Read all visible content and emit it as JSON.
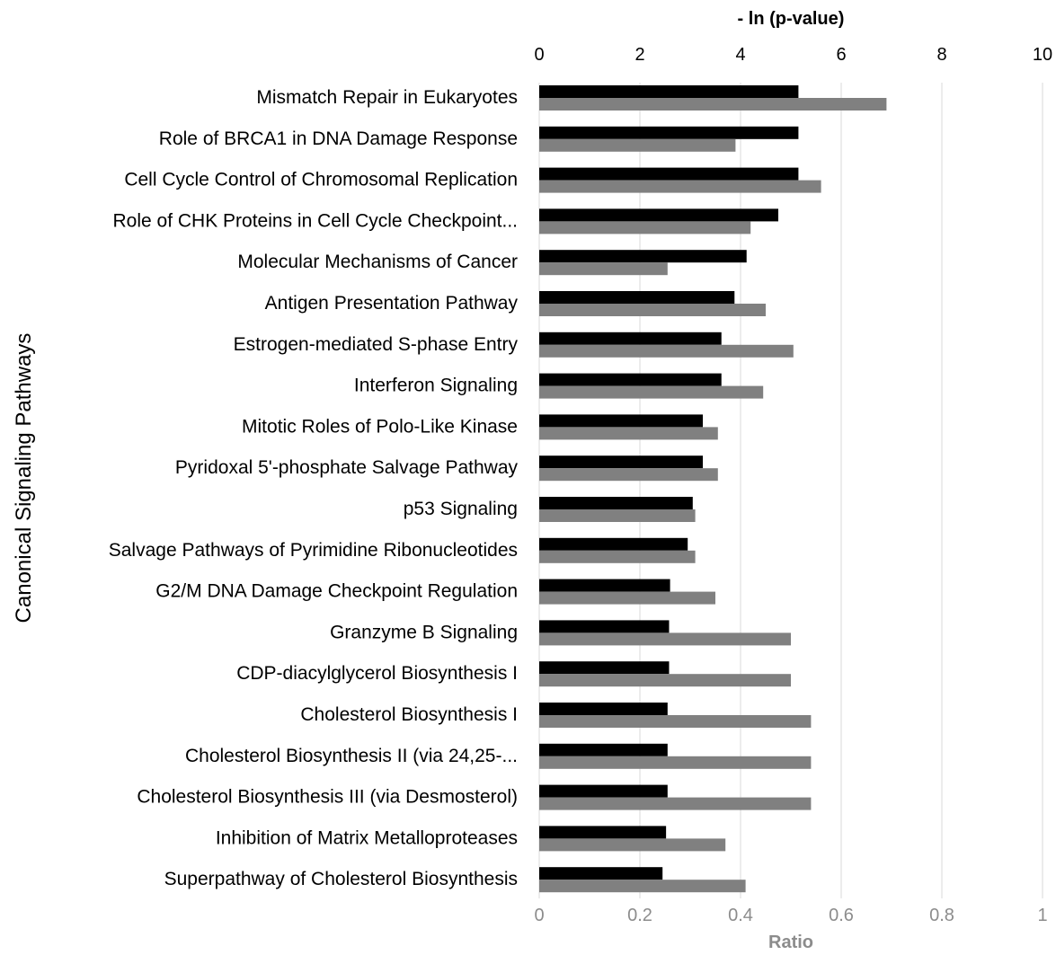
{
  "chart_data": {
    "type": "bar",
    "orientation": "horizontal",
    "ylabel": "Canonical Signaling Pathways",
    "top_axis": {
      "label": "- ln (p-value)",
      "range": [
        0,
        10
      ],
      "ticks": [
        "0",
        "2",
        "4",
        "6",
        "8",
        "10"
      ]
    },
    "bottom_axis": {
      "label": "Ratio",
      "range": [
        0,
        1
      ],
      "ticks": [
        "0",
        "0.2",
        "0.4",
        "0.6",
        "0.8",
        "1"
      ]
    },
    "grid": true,
    "categories": [
      "Mismatch Repair in Eukaryotes",
      "Role of BRCA1 in DNA Damage Response",
      "Cell Cycle Control of Chromosomal Replication",
      "Role of CHK Proteins in Cell Cycle Checkpoint...",
      "Molecular Mechanisms of Cancer",
      "Antigen Presentation Pathway",
      "Estrogen-mediated S-phase Entry",
      "Interferon Signaling",
      "Mitotic Roles of Polo-Like Kinase",
      "Pyridoxal 5'-phosphate Salvage Pathway",
      "p53 Signaling",
      "Salvage Pathways of Pyrimidine Ribonucleotides",
      "G2/M DNA Damage Checkpoint Regulation",
      "Granzyme B Signaling",
      "CDP-diacylglycerol Biosynthesis I",
      "Cholesterol Biosynthesis I",
      "Cholesterol Biosynthesis II (via 24,25-...",
      "Cholesterol Biosynthesis III (via Desmosterol)",
      "Inhibition of Matrix Metalloproteases",
      "Superpathway of Cholesterol Biosynthesis"
    ],
    "series": [
      {
        "axis": "top",
        "color": "#000000",
        "values": [
          5.15,
          5.15,
          5.15,
          4.75,
          4.12,
          3.88,
          3.62,
          3.62,
          3.25,
          3.25,
          3.05,
          2.95,
          2.6,
          2.58,
          2.58,
          2.55,
          2.55,
          2.55,
          2.52,
          2.45
        ]
      },
      {
        "axis": "bottom",
        "color": "#808080",
        "values": [
          0.69,
          0.39,
          0.56,
          0.42,
          0.255,
          0.45,
          0.505,
          0.445,
          0.355,
          0.355,
          0.31,
          0.31,
          0.35,
          0.5,
          0.5,
          0.54,
          0.54,
          0.54,
          0.37,
          0.41
        ]
      }
    ]
  }
}
